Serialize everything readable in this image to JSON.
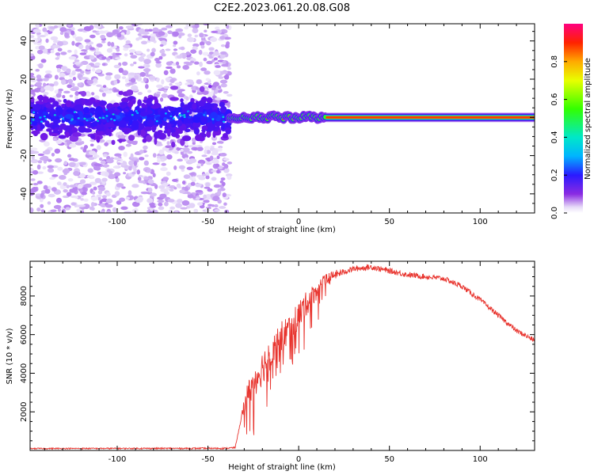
{
  "title": "C2E2.2023.061.20.08.G08",
  "chart_data": [
    {
      "type": "heatmap",
      "xlabel": "Height of straight line (km)",
      "ylabel": "Frequency (Hz)",
      "xlim": [
        -148,
        130
      ],
      "ylim": [
        -50,
        49
      ],
      "x_ticks": [
        -100,
        -50,
        0,
        50,
        100
      ],
      "y_ticks": [
        -40,
        -20,
        0,
        20,
        40
      ],
      "colorbar": {
        "label": "Normalized spectral amplitude",
        "range": [
          0,
          1
        ],
        "ticks": [
          0.0,
          0.2,
          0.4,
          0.6,
          0.8
        ],
        "tick_labels": [
          "0.0",
          "0.2",
          "0.4",
          "0.6",
          "0.8"
        ]
      },
      "features": {
        "noise_region_x": [
          -148,
          -38
        ],
        "noise_band_center_hz": 0,
        "noise_band_halfwidth_hz": 10,
        "transition_x": [
          -38,
          15
        ],
        "carrier_line_x": [
          15,
          130
        ],
        "carrier_line_hz": 0
      }
    },
    {
      "type": "line",
      "xlabel": "Height of straight line (km)",
      "ylabel": "SNR (10 * v/v)",
      "xlim": [
        -148,
        130
      ],
      "ylim": [
        0,
        9800
      ],
      "x_ticks": [
        -100,
        -50,
        0,
        50,
        100
      ],
      "y_ticks": [
        2000,
        4000,
        6000,
        8000
      ],
      "line_color": "#e8342e",
      "envelope": [
        {
          "x": -148,
          "y": 100
        },
        {
          "x": -40,
          "y": 110
        },
        {
          "x": -35,
          "y": 150
        },
        {
          "x": -30,
          "y": 2400
        },
        {
          "x": -25,
          "y": 3500
        },
        {
          "x": -20,
          "y": 4300
        },
        {
          "x": -15,
          "y": 5200
        },
        {
          "x": -10,
          "y": 5800
        },
        {
          "x": -5,
          "y": 6300
        },
        {
          "x": 0,
          "y": 7000
        },
        {
          "x": 5,
          "y": 7700
        },
        {
          "x": 10,
          "y": 8300
        },
        {
          "x": 15,
          "y": 8800
        },
        {
          "x": 20,
          "y": 9100
        },
        {
          "x": 30,
          "y": 9400
        },
        {
          "x": 40,
          "y": 9500
        },
        {
          "x": 50,
          "y": 9300
        },
        {
          "x": 60,
          "y": 9100
        },
        {
          "x": 70,
          "y": 9000
        },
        {
          "x": 80,
          "y": 8900
        },
        {
          "x": 90,
          "y": 8500
        },
        {
          "x": 100,
          "y": 7800
        },
        {
          "x": 110,
          "y": 7000
        },
        {
          "x": 120,
          "y": 6200
        },
        {
          "x": 130,
          "y": 5700
        }
      ],
      "noise_amplitude": [
        {
          "x": -148,
          "y": 60
        },
        {
          "x": -32,
          "y": 80
        },
        {
          "x": -28,
          "y": 1600
        },
        {
          "x": -15,
          "y": 1900
        },
        {
          "x": 0,
          "y": 1500
        },
        {
          "x": 15,
          "y": 700
        },
        {
          "x": 25,
          "y": 300
        },
        {
          "x": 130,
          "y": 250
        }
      ]
    }
  ]
}
